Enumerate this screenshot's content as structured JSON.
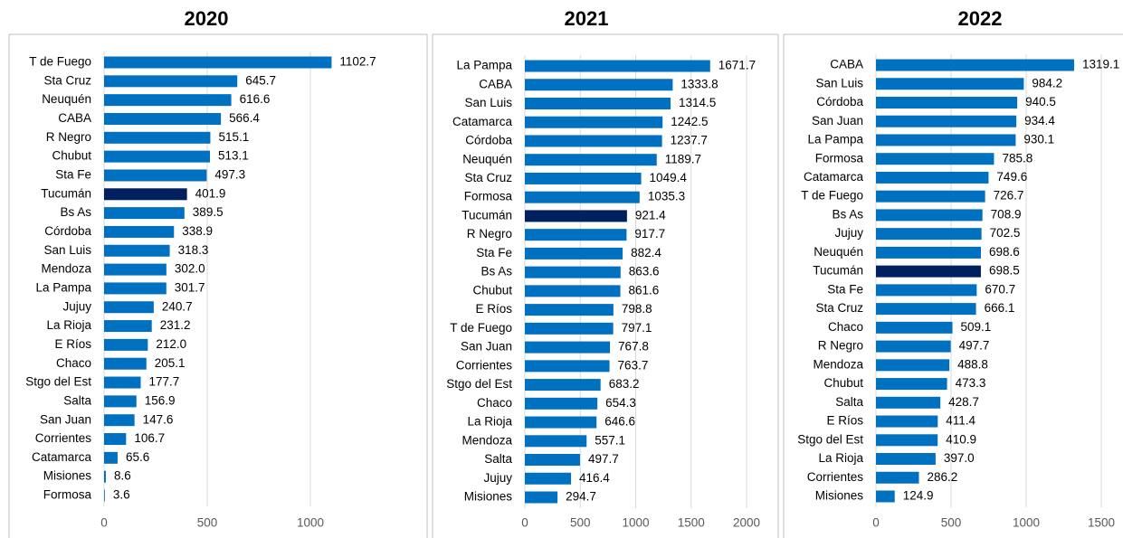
{
  "chart_data": [
    {
      "type": "bar",
      "title": "2020",
      "orientation": "horizontal",
      "color": "#0070C0",
      "highlight": {
        "index": 7,
        "color": "#002060"
      },
      "categories": [
        "T de Fuego",
        "Sta Cruz",
        "Neuquén",
        "CABA",
        "R Negro",
        "Chubut",
        "Sta Fe",
        "Tucumán",
        "Bs As",
        "Córdoba",
        "San Luis",
        "Mendoza",
        "La Pampa",
        "Jujuy",
        "La Rioja",
        "E Ríos",
        "Chaco",
        "Stgo del Est",
        "Salta",
        "San Juan",
        "Corrientes",
        "Catamarca",
        "Misiones",
        "Formosa"
      ],
      "values": [
        1102.7,
        645.7,
        616.6,
        566.4,
        515.1,
        513.1,
        497.3,
        401.9,
        389.5,
        338.9,
        318.3,
        302.0,
        301.7,
        240.7,
        231.2,
        212.0,
        205.1,
        177.7,
        156.9,
        147.6,
        106.7,
        65.6,
        8.6,
        3.6
      ],
      "value_labels": [
        "1102.7",
        "645.7",
        "616.6",
        "566.4",
        "515.1",
        "513.1",
        "497.3",
        "401.9",
        "389.5",
        "338.9",
        "318.3",
        "302.0",
        "301.7",
        "240.7",
        "231.2",
        "212.0",
        "205.1",
        "177.7",
        "156.9",
        "147.6",
        "106.7",
        "65.6",
        "8.6",
        "3.6"
      ],
      "xlim": [
        0,
        1500
      ],
      "xticks": [
        0,
        500,
        1000
      ],
      "grid": true
    },
    {
      "type": "bar",
      "title": "2021",
      "orientation": "horizontal",
      "color": "#0070C0",
      "highlight": {
        "index": 8,
        "color": "#002060"
      },
      "categories": [
        "La Pampa",
        "CABA",
        "San Luis",
        "Catamarca",
        "Córdoba",
        "Neuquén",
        "Sta Cruz",
        "Formosa",
        "Tucumán",
        "R Negro",
        "Sta Fe",
        "Bs As",
        "Chubut",
        "E Ríos",
        "T de Fuego",
        "San Juan",
        "Corrientes",
        "Stgo del Est",
        "Chaco",
        "La Rioja",
        "Mendoza",
        "Salta",
        "Jujuy",
        "Misiones"
      ],
      "values": [
        1671.7,
        1333.8,
        1314.5,
        1242.5,
        1237.7,
        1189.7,
        1049.4,
        1035.3,
        921.4,
        917.7,
        882.4,
        863.6,
        861.6,
        798.8,
        797.1,
        767.8,
        763.7,
        683.2,
        654.3,
        646.6,
        557.1,
        497.7,
        416.4,
        294.7
      ],
      "value_labels": [
        "1671.7",
        "1333.8",
        "1314.5",
        "1242.5",
        "1237.7",
        "1189.7",
        "1049.4",
        "1035.3",
        "921.4",
        "917.7",
        "882.4",
        "863.6",
        "861.6",
        "798.8",
        "797.1",
        "767.8",
        "763.7",
        "683.2",
        "654.3",
        "646.6",
        "557.1",
        "497.7",
        "416.4",
        "294.7"
      ],
      "xlim": [
        0,
        2000
      ],
      "xticks": [
        0,
        500,
        1000,
        1500,
        2000
      ],
      "grid": true
    },
    {
      "type": "bar",
      "title": "2022",
      "orientation": "horizontal",
      "color": "#0070C0",
      "highlight": {
        "index": 11,
        "color": "#002060"
      },
      "categories": [
        "CABA",
        "San Luis",
        "Córdoba",
        "San Juan",
        "La Pampa",
        "Formosa",
        "Catamarca",
        "T de Fuego",
        "Bs As",
        "Jujuy",
        "Neuquén",
        "Tucumán",
        "Sta Fe",
        "Sta Cruz",
        "Chaco",
        "R Negro",
        "Mendoza",
        "Chubut",
        "Salta",
        "E Ríos",
        "Stgo del Est",
        "La Rioja",
        "Corrientes",
        "Misiones"
      ],
      "values": [
        1319.1,
        984.2,
        940.5,
        934.4,
        930.1,
        785.8,
        749.6,
        726.7,
        708.9,
        702.5,
        698.6,
        698.5,
        670.7,
        666.1,
        509.1,
        497.7,
        488.8,
        473.3,
        428.7,
        411.4,
        410.9,
        397.0,
        286.2,
        124.9
      ],
      "value_labels": [
        "1319.1",
        "984.2",
        "940.5",
        "934.4",
        "930.1",
        "785.8",
        "749.6",
        "726.7",
        "708.9",
        "702.5",
        "698.6",
        "698.5",
        "670.7",
        "666.1",
        "509.1",
        "497.7",
        "488.8",
        "473.3",
        "428.7",
        "411.4",
        "410.9",
        "397.0",
        "286.2",
        "124.9"
      ],
      "xlim": [
        0,
        1500
      ],
      "xticks": [
        0,
        500,
        1000,
        1500
      ],
      "grid": true
    }
  ]
}
